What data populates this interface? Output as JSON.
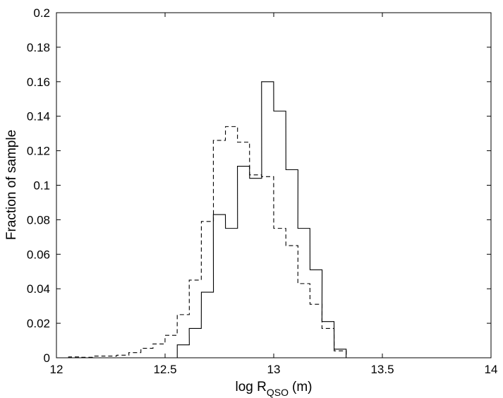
{
  "chart_data": {
    "type": "histogram",
    "title": "",
    "xlabel": {
      "main": "log R",
      "sub": "QSO",
      "unit": "(m)"
    },
    "ylabel": "Fraction of sample",
    "xlim": [
      12,
      14
    ],
    "ylim": [
      0,
      0.2
    ],
    "xticks": [
      "12",
      "12.5",
      "13",
      "13.5",
      "14"
    ],
    "yticks": [
      "0",
      "0.02",
      "0.04",
      "0.06",
      "0.08",
      "0.1",
      "0.12",
      "0.14",
      "0.16",
      "0.18",
      "0.2"
    ],
    "grid": false,
    "bin_width": 0.0556,
    "series": [
      {
        "line_style": "solid",
        "bin_starts": [
          12.556,
          12.611,
          12.667,
          12.722,
          12.778,
          12.833,
          12.889,
          12.944,
          13.0,
          13.056,
          13.111,
          13.167,
          13.222,
          13.278,
          13.333
        ],
        "values": [
          0.0075,
          0.017,
          0.038,
          0.083,
          0.075,
          0.111,
          0.104,
          0.16,
          0.143,
          0.109,
          0.075,
          0.051,
          0.021,
          0.005,
          0.0
        ]
      },
      {
        "line_style": "dashed",
        "bin_starts": [
          12.056,
          12.111,
          12.167,
          12.222,
          12.278,
          12.333,
          12.389,
          12.444,
          12.5,
          12.556,
          12.611,
          12.667,
          12.722,
          12.778,
          12.833,
          12.889,
          12.944,
          13.0,
          13.056,
          13.111,
          13.167,
          13.222,
          13.278
        ],
        "values": [
          0.0005,
          0.0003,
          0.001,
          0.001,
          0.0015,
          0.003,
          0.0055,
          0.008,
          0.013,
          0.025,
          0.045,
          0.079,
          0.126,
          0.134,
          0.125,
          0.106,
          0.105,
          0.075,
          0.065,
          0.043,
          0.031,
          0.017,
          0.004
        ]
      }
    ]
  }
}
